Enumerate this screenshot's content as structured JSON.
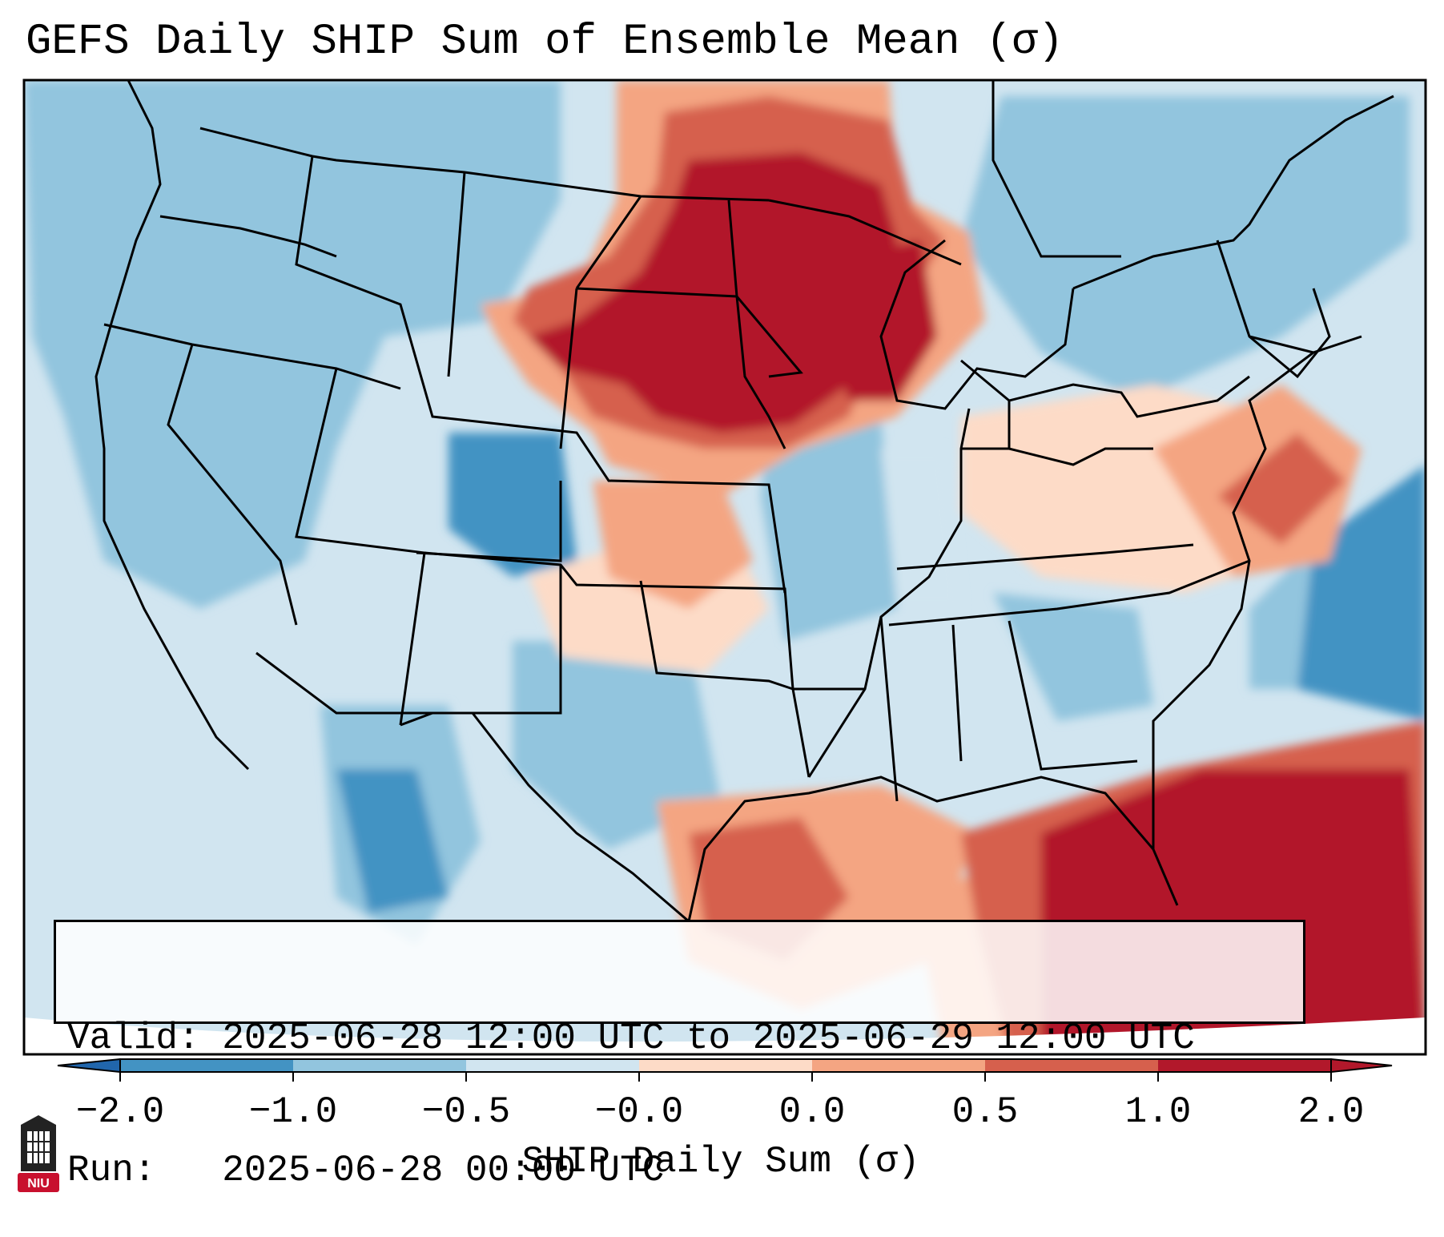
{
  "title": "GEFS Daily SHIP Sum of Ensemble Mean (σ)",
  "info": {
    "valid_label": "Valid:",
    "valid_value": "2025-06-28 12:00 UTC to 2025-06-29 12:00 UTC",
    "run_label": "Run:",
    "run_value": "2025-06-28 00:00 UTC"
  },
  "colorbar": {
    "label": "SHIP Daily Sum (σ)",
    "ticks": [
      "−2.0",
      "−1.0",
      "−0.5",
      "−0.0",
      "0.0",
      "0.5",
      "1.0",
      "2.0"
    ],
    "colors": [
      "#4393c3",
      "#92c5de",
      "#d1e5f0",
      "#fddbc7",
      "#f4a582",
      "#d6604d",
      "#b2182b"
    ],
    "extend_low_color": "#2166ac",
    "extend_high_color": "#b2182b"
  },
  "logo": {
    "text": "NIU",
    "color": "#c8102e"
  },
  "map": {
    "background_color": "#d1e5f0",
    "regions": [
      {
        "name": "northern-plains-upper-midwest-high",
        "category": ">=1.0"
      },
      {
        "name": "southeast-gulf-high",
        "category": ">=1.0"
      },
      {
        "name": "southern-plains-moderate",
        "category": "0.5-1.0"
      },
      {
        "name": "mid-atlantic-moderate",
        "category": "0.5-1.0"
      },
      {
        "name": "colorado-low",
        "category": "-1.0 to -2.0"
      },
      {
        "name": "atlantic-low",
        "category": "-1.0 to -2.0"
      },
      {
        "name": "west-low",
        "category": "-0.5 to -1.0"
      }
    ]
  }
}
